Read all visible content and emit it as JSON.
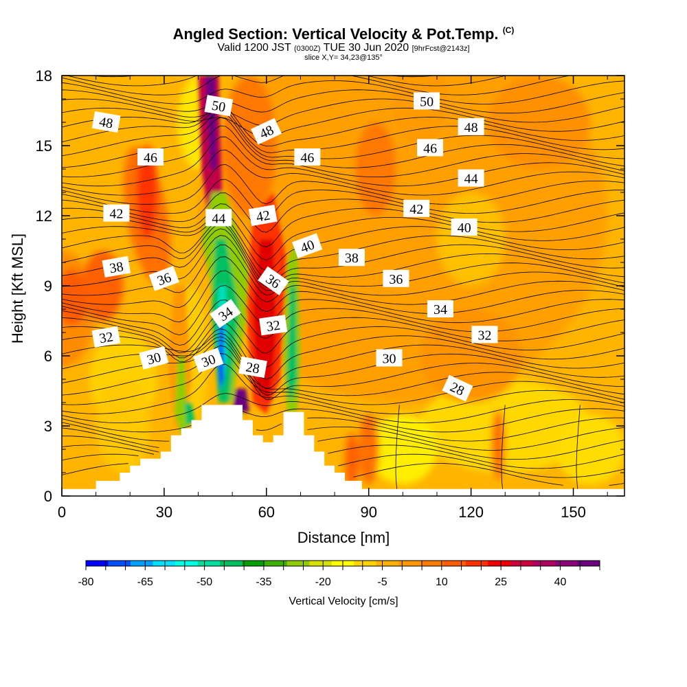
{
  "title": {
    "main": "Angled Section: Vertical Velocity & Pot.Temp.",
    "main_suffix": "(C)",
    "valid_prefix": "Valid 1200 JST",
    "valid_utc": "(0300Z)",
    "valid_date": "TUE 30 Jun 2020",
    "forecast": "[9hrFcst@2143z]",
    "slice": "slice X,Y= 34,23@135°"
  },
  "chart_data": {
    "type": "heatmap",
    "xlabel": "Distance [nm]",
    "ylabel": "Height [Kft MSL]",
    "xlim": [
      0,
      165
    ],
    "ylim": [
      0,
      18
    ],
    "x_ticks": [
      0,
      30,
      60,
      90,
      120,
      150
    ],
    "y_ticks": [
      0,
      3,
      6,
      9,
      12,
      15,
      18
    ],
    "colorbar": {
      "label": "Vertical Velocity [cm/s]",
      "tick_labels": [
        -80,
        -65,
        -50,
        -35,
        -20,
        -5,
        10,
        25,
        40
      ],
      "range": [
        -80,
        50
      ],
      "colors": [
        "#0000ff",
        "#0050ff",
        "#00a0ff",
        "#00e0ff",
        "#00ffe0",
        "#00e0a0",
        "#00c060",
        "#00a000",
        "#40b000",
        "#90cc00",
        "#d8e000",
        "#ffff00",
        "#ffd400",
        "#ffb000",
        "#ff9800",
        "#ff7c00",
        "#ff5c00",
        "#ff3000",
        "#f00000",
        "#d0003c",
        "#b00060",
        "#8c0078",
        "#6a0080"
      ]
    },
    "contour_labels": [
      {
        "text": "48",
        "x": 13,
        "y": 16.0,
        "angle": 10
      },
      {
        "text": "50",
        "x": 46,
        "y": 16.7,
        "angle": 10
      },
      {
        "text": "48",
        "x": 60,
        "y": 15.6,
        "angle": -25
      },
      {
        "text": "50",
        "x": 107,
        "y": 16.9,
        "angle": 0
      },
      {
        "text": "48",
        "x": 120,
        "y": 15.8,
        "angle": 0
      },
      {
        "text": "46",
        "x": 26,
        "y": 14.5,
        "angle": 0
      },
      {
        "text": "46",
        "x": 72,
        "y": 14.5,
        "angle": 0
      },
      {
        "text": "46",
        "x": 108,
        "y": 14.9,
        "angle": 0
      },
      {
        "text": "44",
        "x": 120,
        "y": 13.6,
        "angle": 0
      },
      {
        "text": "42",
        "x": 16,
        "y": 12.1,
        "angle": 0
      },
      {
        "text": "44",
        "x": 46,
        "y": 11.9,
        "angle": 0
      },
      {
        "text": "42",
        "x": 59,
        "y": 12.0,
        "angle": -10
      },
      {
        "text": "42",
        "x": 104,
        "y": 12.3,
        "angle": 0
      },
      {
        "text": "40",
        "x": 118,
        "y": 11.5,
        "angle": 0
      },
      {
        "text": "40",
        "x": 72,
        "y": 10.7,
        "angle": -20
      },
      {
        "text": "38",
        "x": 16,
        "y": 9.8,
        "angle": -10
      },
      {
        "text": "38",
        "x": 85,
        "y": 10.2,
        "angle": 0
      },
      {
        "text": "36",
        "x": 30,
        "y": 9.3,
        "angle": -20
      },
      {
        "text": "36",
        "x": 62,
        "y": 9.2,
        "angle": 35
      },
      {
        "text": "36",
        "x": 98,
        "y": 9.3,
        "angle": 0
      },
      {
        "text": "34",
        "x": 48,
        "y": 7.8,
        "angle": -35
      },
      {
        "text": "34",
        "x": 111,
        "y": 8.0,
        "angle": 0
      },
      {
        "text": "32",
        "x": 13,
        "y": 6.8,
        "angle": -10
      },
      {
        "text": "32",
        "x": 62,
        "y": 7.3,
        "angle": -8
      },
      {
        "text": "32",
        "x": 124,
        "y": 6.9,
        "angle": 0
      },
      {
        "text": "30",
        "x": 27,
        "y": 5.9,
        "angle": -15
      },
      {
        "text": "30",
        "x": 43,
        "y": 5.8,
        "angle": -20
      },
      {
        "text": "28",
        "x": 56,
        "y": 5.5,
        "angle": 10
      },
      {
        "text": "30",
        "x": 96,
        "y": 5.9,
        "angle": 0
      },
      {
        "text": "28",
        "x": 116,
        "y": 4.6,
        "angle": 25
      }
    ],
    "terrain": [
      [
        0,
        0.3
      ],
      [
        10,
        0.3
      ],
      [
        10,
        0.65
      ],
      [
        17,
        0.65
      ],
      [
        17,
        1.0
      ],
      [
        20,
        1.0
      ],
      [
        20,
        1.3
      ],
      [
        23,
        1.3
      ],
      [
        23,
        1.6
      ],
      [
        29,
        1.6
      ],
      [
        29,
        1.9
      ],
      [
        32,
        1.9
      ],
      [
        32,
        2.6
      ],
      [
        35,
        2.6
      ],
      [
        35,
        2.9
      ],
      [
        38,
        2.9
      ],
      [
        38,
        3.25
      ],
      [
        41,
        3.25
      ],
      [
        41,
        3.9
      ],
      [
        53,
        3.9
      ],
      [
        53,
        3.25
      ],
      [
        56,
        3.25
      ],
      [
        56,
        2.6
      ],
      [
        59,
        2.6
      ],
      [
        59,
        2.3
      ],
      [
        62,
        2.3
      ],
      [
        62,
        2.6
      ],
      [
        65,
        2.6
      ],
      [
        65,
        3.6
      ],
      [
        71,
        3.6
      ],
      [
        71,
        2.6
      ],
      [
        74,
        2.6
      ],
      [
        74,
        1.9
      ],
      [
        77,
        1.9
      ],
      [
        77,
        1.3
      ],
      [
        80,
        1.3
      ],
      [
        80,
        1.0
      ],
      [
        83,
        1.0
      ],
      [
        83,
        0.65
      ],
      [
        88,
        0.65
      ],
      [
        88,
        0.3
      ],
      [
        165,
        0.3
      ]
    ]
  }
}
